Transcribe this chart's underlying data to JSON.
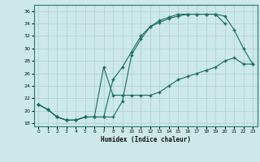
{
  "xlabel": "Humidex (Indice chaleur)",
  "ylabel": "",
  "bg_color": "#cce8e8",
  "grid_color": "#aacfcf",
  "line_color": "#1a6b5a",
  "xlim": [
    -0.5,
    23.5
  ],
  "ylim": [
    17.5,
    37.0
  ],
  "xticks": [
    0,
    1,
    2,
    3,
    4,
    5,
    6,
    7,
    8,
    9,
    10,
    11,
    12,
    13,
    14,
    15,
    16,
    17,
    18,
    19,
    20,
    21,
    22,
    23
  ],
  "yticks": [
    18,
    20,
    22,
    24,
    26,
    28,
    30,
    32,
    34,
    36
  ],
  "curve1_x": [
    0,
    1,
    2,
    3,
    4,
    5,
    6,
    7,
    8,
    9,
    10,
    11,
    12,
    13,
    14,
    15,
    16,
    17,
    18,
    19,
    20,
    21,
    22,
    23
  ],
  "curve1_y": [
    21.0,
    20.2,
    19.0,
    18.5,
    18.5,
    19.0,
    19.0,
    19.0,
    19.0,
    21.5,
    29.0,
    31.5,
    33.5,
    34.2,
    34.8,
    35.2,
    35.5,
    35.5,
    35.5,
    35.5,
    35.2,
    33.0,
    30.0,
    27.5
  ],
  "curve2_x": [
    0,
    1,
    2,
    3,
    4,
    5,
    6,
    7,
    8,
    9,
    10,
    11,
    12,
    13,
    14,
    15,
    16,
    17,
    18,
    19,
    20,
    21,
    22,
    23
  ],
  "curve2_y": [
    21.0,
    20.2,
    19.0,
    18.5,
    18.5,
    19.0,
    19.0,
    27.0,
    22.5,
    22.5,
    22.5,
    22.5,
    22.5,
    23.0,
    24.0,
    25.0,
    25.5,
    26.0,
    26.5,
    27.0,
    28.0,
    28.5,
    27.5,
    27.5
  ],
  "curve3_x": [
    0,
    1,
    2,
    3,
    4,
    5,
    6,
    7,
    8,
    9,
    10,
    11,
    12,
    13,
    14,
    15,
    16,
    17,
    18,
    19,
    20
  ],
  "curve3_y": [
    21.0,
    20.2,
    19.0,
    18.5,
    18.5,
    19.0,
    19.0,
    19.0,
    25.0,
    27.0,
    29.5,
    32.0,
    33.5,
    34.5,
    35.0,
    35.5,
    35.5,
    35.5,
    35.5,
    35.5,
    34.0
  ]
}
